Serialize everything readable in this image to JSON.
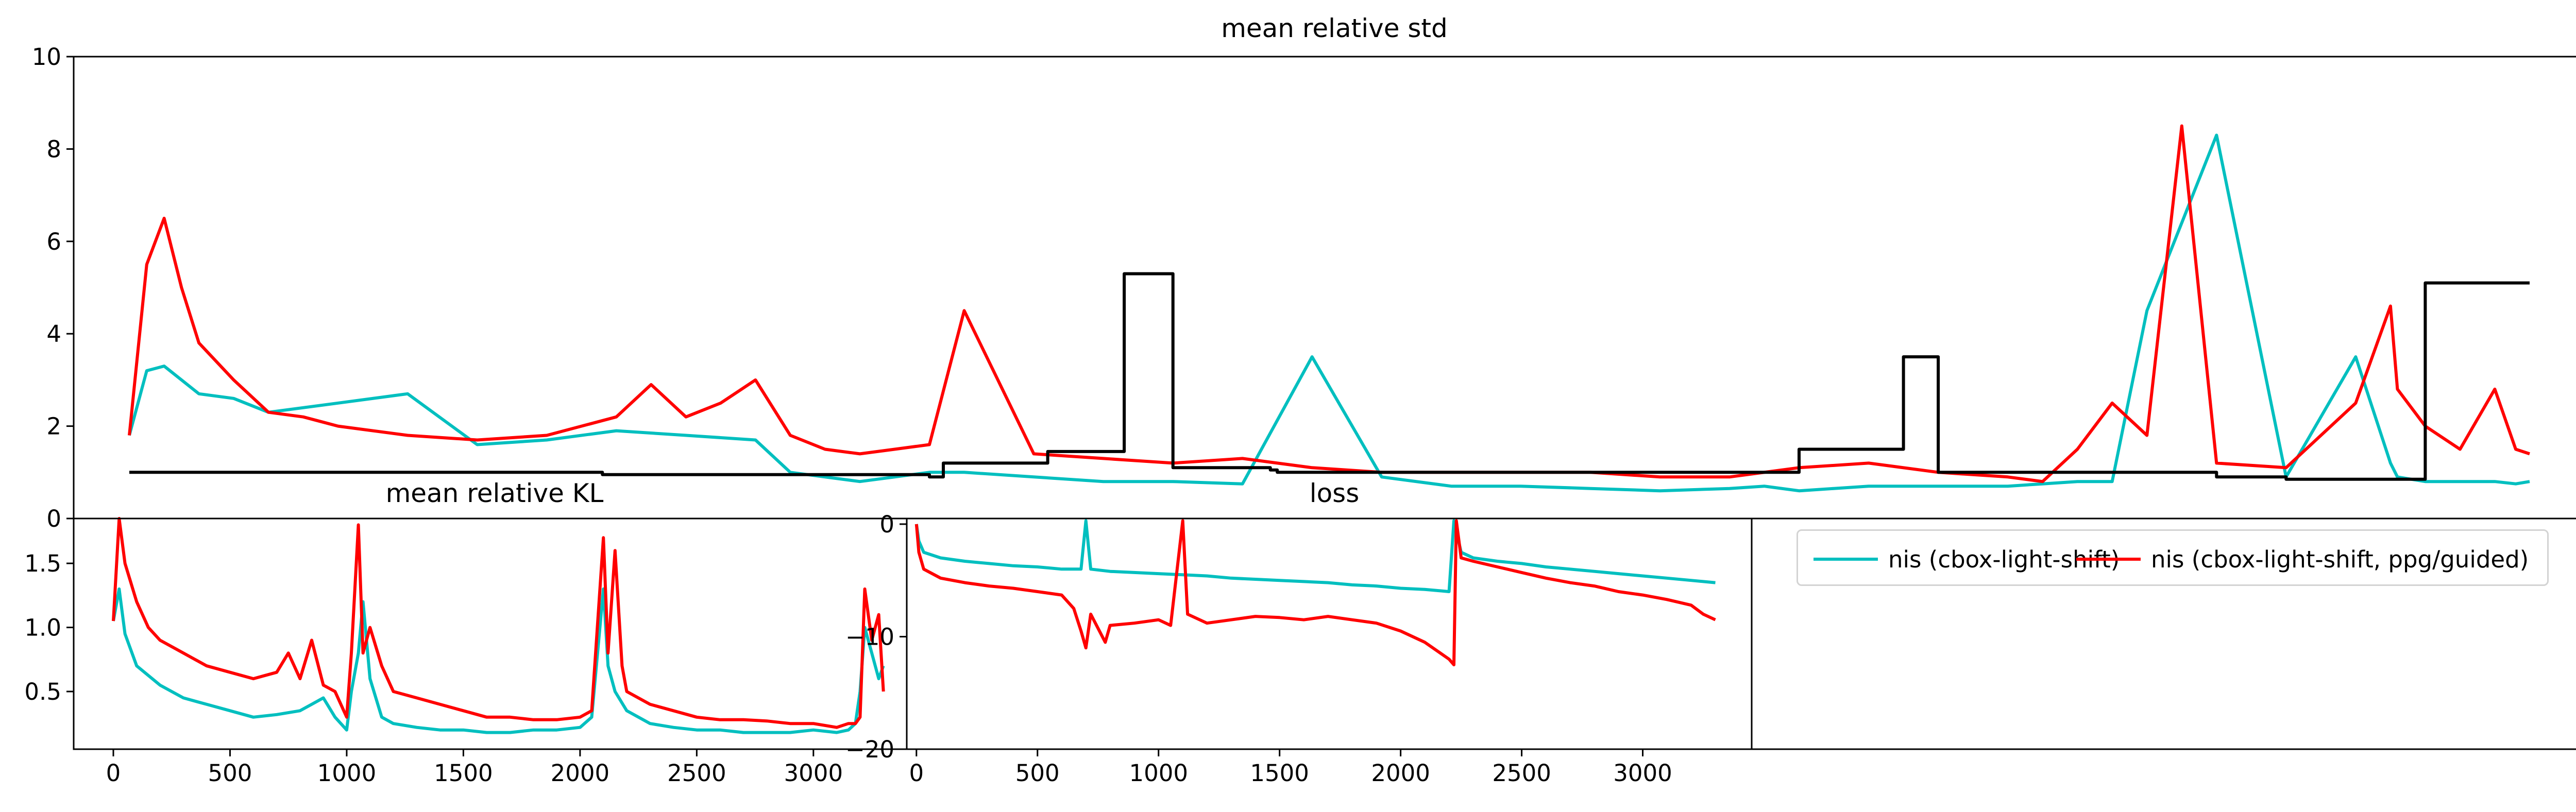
{
  "chart_data": [
    {
      "id": "std",
      "type": "line",
      "title": "mean relative std",
      "xlim": [
        -80,
        3550
      ],
      "ylim": [
        0,
        10
      ],
      "yticks": [
        0,
        2,
        4,
        6,
        8,
        10
      ],
      "ytick_labels": [
        "0",
        "2",
        "4",
        "6",
        "8",
        "10"
      ],
      "series": [
        {
          "color": "#00bfbf",
          "x": [
            0,
            25,
            50,
            100,
            150,
            200,
            300,
            400,
            500,
            600,
            700,
            800,
            900,
            950,
            1000,
            1050,
            1100,
            1150,
            1200,
            1300,
            1400,
            1500,
            1600,
            1700,
            1800,
            1900,
            2000,
            2100,
            2200,
            2300,
            2350,
            2400,
            2450,
            2500,
            2550,
            2600,
            2650,
            2700,
            2750,
            2800,
            2850,
            2900,
            3000,
            3100,
            3200,
            3250,
            3260,
            3300,
            3350,
            3400,
            3430,
            3450
          ],
          "y": [
            1.8,
            3.2,
            3.3,
            2.7,
            2.6,
            2.3,
            2.5,
            2.7,
            1.6,
            1.7,
            1.9,
            1.8,
            1.7,
            1.0,
            0.9,
            0.8,
            0.9,
            1.0,
            1.0,
            0.9,
            0.8,
            0.8,
            0.75,
            3.5,
            0.9,
            0.7,
            0.7,
            0.65,
            0.6,
            0.65,
            0.7,
            0.6,
            0.65,
            0.7,
            0.7,
            0.7,
            0.7,
            0.7,
            0.75,
            0.8,
            0.8,
            4.5,
            8.3,
            0.9,
            3.5,
            1.2,
            0.9,
            0.8,
            0.8,
            0.8,
            0.75,
            0.8
          ]
        },
        {
          "color": "#ff0000",
          "x": [
            0,
            25,
            50,
            75,
            100,
            150,
            200,
            250,
            300,
            400,
            500,
            600,
            700,
            750,
            800,
            850,
            900,
            950,
            1000,
            1050,
            1100,
            1150,
            1200,
            1300,
            1400,
            1500,
            1600,
            1700,
            1800,
            1900,
            2000,
            2100,
            2200,
            2300,
            2400,
            2500,
            2600,
            2700,
            2750,
            2800,
            2850,
            2900,
            2950,
            3000,
            3100,
            3200,
            3250,
            3260,
            3300,
            3350,
            3400,
            3430,
            3450
          ],
          "y": [
            1.8,
            5.5,
            6.5,
            5.0,
            3.8,
            3.0,
            2.3,
            2.2,
            2.0,
            1.8,
            1.7,
            1.8,
            2.2,
            2.9,
            2.2,
            2.5,
            3.0,
            1.8,
            1.5,
            1.4,
            1.5,
            1.6,
            4.5,
            1.4,
            1.3,
            1.2,
            1.3,
            1.1,
            1.0,
            1.0,
            1.0,
            1.0,
            0.9,
            0.9,
            1.1,
            1.2,
            1.0,
            0.9,
            0.8,
            1.5,
            2.5,
            1.8,
            8.5,
            1.2,
            1.1,
            2.5,
            4.6,
            2.8,
            2.0,
            1.5,
            2.8,
            1.5,
            1.4
          ]
        },
        {
          "color": "#000000",
          "step": true,
          "x": [
            0,
            680,
            1150,
            1170,
            1320,
            1430,
            1500,
            1640,
            1650,
            1860,
            2250,
            2280,
            2400,
            2550,
            2600,
            2950,
            3000,
            3100,
            3300,
            3450
          ],
          "y": [
            1.0,
            0.95,
            0.9,
            1.2,
            1.45,
            5.3,
            1.1,
            1.05,
            1.0,
            1.0,
            1.0,
            1.0,
            1.5,
            3.5,
            1.0,
            1.0,
            0.9,
            0.85,
            5.1,
            5.1
          ]
        }
      ]
    },
    {
      "id": "kl",
      "type": "line",
      "title": "mean relative KL",
      "xlim": [
        -170,
        3400
      ],
      "ylim": [
        0.05,
        1.85
      ],
      "yticks": [
        0.5,
        1.0,
        1.5
      ],
      "ytick_labels": [
        "0.5",
        "1.0",
        "1.5"
      ],
      "xticks": [
        0,
        500,
        1000,
        1500,
        2000,
        2500,
        3000
      ],
      "xtick_labels": [
        "0",
        "500",
        "1000",
        "1500",
        "2000",
        "2500",
        "3000"
      ],
      "series": [
        {
          "color": "#00bfbf",
          "x": [
            0,
            25,
            50,
            100,
            200,
            300,
            400,
            500,
            600,
            700,
            800,
            850,
            900,
            950,
            1000,
            1020,
            1050,
            1070,
            1100,
            1150,
            1200,
            1300,
            1400,
            1500,
            1600,
            1700,
            1800,
            1900,
            2000,
            2050,
            2100,
            2120,
            2150,
            2200,
            2300,
            2400,
            2500,
            2600,
            2700,
            2800,
            2900,
            3000,
            3100,
            3150,
            3180,
            3200,
            3220,
            3250,
            3280,
            3300
          ],
          "y": [
            1.05,
            1.3,
            0.95,
            0.7,
            0.55,
            0.45,
            0.4,
            0.35,
            0.3,
            0.32,
            0.35,
            0.4,
            0.45,
            0.3,
            0.2,
            0.5,
            0.8,
            1.2,
            0.6,
            0.3,
            0.25,
            0.22,
            0.2,
            0.2,
            0.18,
            0.18,
            0.2,
            0.2,
            0.22,
            0.3,
            1.3,
            0.7,
            0.5,
            0.35,
            0.25,
            0.22,
            0.2,
            0.2,
            0.18,
            0.18,
            0.18,
            0.2,
            0.18,
            0.2,
            0.25,
            0.5,
            1.0,
            0.8,
            0.6,
            0.7
          ]
        },
        {
          "color": "#ff0000",
          "x": [
            0,
            25,
            50,
            100,
            150,
            200,
            300,
            400,
            500,
            600,
            700,
            750,
            800,
            850,
            900,
            950,
            1000,
            1020,
            1050,
            1070,
            1100,
            1150,
            1200,
            1300,
            1400,
            1500,
            1600,
            1700,
            1800,
            1900,
            2000,
            2050,
            2100,
            2120,
            2150,
            2180,
            2200,
            2300,
            2400,
            2500,
            2600,
            2700,
            2800,
            2900,
            3000,
            3100,
            3150,
            3180,
            3200,
            3220,
            3250,
            3280,
            3300
          ],
          "y": [
            1.05,
            1.85,
            1.5,
            1.2,
            1.0,
            0.9,
            0.8,
            0.7,
            0.65,
            0.6,
            0.65,
            0.8,
            0.6,
            0.9,
            0.55,
            0.5,
            0.3,
            0.8,
            1.8,
            0.8,
            1.0,
            0.7,
            0.5,
            0.45,
            0.4,
            0.35,
            0.3,
            0.3,
            0.28,
            0.28,
            0.3,
            0.35,
            1.7,
            0.8,
            1.6,
            0.7,
            0.5,
            0.4,
            0.35,
            0.3,
            0.28,
            0.28,
            0.27,
            0.25,
            0.25,
            0.22,
            0.25,
            0.25,
            0.3,
            1.3,
            0.9,
            1.1,
            0.5
          ]
        }
      ]
    },
    {
      "id": "loss",
      "type": "line",
      "title": "loss",
      "xlim": [
        -40,
        3450
      ],
      "ylim": [
        -20,
        0.5
      ],
      "yticks": [
        0,
        -10,
        -20
      ],
      "ytick_labels": [
        "0",
        "−10",
        "−20"
      ],
      "xticks": [
        0,
        500,
        1000,
        1500,
        2000,
        2500,
        3000
      ],
      "xtick_labels": [
        "0",
        "500",
        "1000",
        "1500",
        "2000",
        "2500",
        "3000"
      ],
      "series": [
        {
          "color": "#00bfbf",
          "x": [
            0,
            10,
            30,
            100,
            200,
            300,
            400,
            500,
            600,
            680,
            700,
            720,
            800,
            900,
            1000,
            1100,
            1200,
            1300,
            1400,
            1500,
            1600,
            1700,
            1800,
            1900,
            2000,
            2100,
            2200,
            2220,
            2250,
            2300,
            2400,
            2500,
            2600,
            2700,
            2800,
            2900,
            3000,
            3100,
            3200,
            3300
          ],
          "y": [
            0.0,
            -1.5,
            -2.5,
            -3.0,
            -3.3,
            -3.5,
            -3.7,
            -3.8,
            -4.0,
            -4.0,
            0.3,
            -4.0,
            -4.2,
            -4.3,
            -4.4,
            -4.5,
            -4.6,
            -4.8,
            -4.9,
            -5.0,
            -5.1,
            -5.2,
            -5.4,
            -5.5,
            -5.7,
            -5.8,
            -6.0,
            0.3,
            -2.5,
            -3.0,
            -3.3,
            -3.5,
            -3.8,
            -4.0,
            -4.2,
            -4.4,
            -4.6,
            -4.8,
            -5.0,
            -5.2
          ]
        },
        {
          "color": "#ff0000",
          "x": [
            0,
            10,
            30,
            100,
            200,
            300,
            400,
            500,
            600,
            650,
            680,
            700,
            720,
            780,
            800,
            900,
            1000,
            1050,
            1100,
            1120,
            1200,
            1300,
            1400,
            1500,
            1600,
            1700,
            1800,
            1900,
            2000,
            2100,
            2200,
            2220,
            2230,
            2250,
            2300,
            2400,
            2500,
            2600,
            2700,
            2800,
            2900,
            3000,
            3100,
            3200,
            3250,
            3300
          ],
          "y": [
            0.0,
            -2.5,
            -4.0,
            -4.8,
            -5.2,
            -5.5,
            -5.7,
            -6.0,
            -6.3,
            -7.5,
            -9.5,
            -11.0,
            -8.0,
            -10.5,
            -9.0,
            -8.8,
            -8.5,
            -9.0,
            0.3,
            -8.0,
            -8.8,
            -8.5,
            -8.2,
            -8.3,
            -8.5,
            -8.2,
            -8.5,
            -8.8,
            -9.5,
            -10.5,
            -12.0,
            -12.5,
            0.3,
            -3.0,
            -3.3,
            -3.8,
            -4.3,
            -4.8,
            -5.2,
            -5.5,
            -6.0,
            -6.3,
            -6.7,
            -7.2,
            -8.0,
            -8.5
          ]
        }
      ]
    }
  ],
  "legend": {
    "entries": [
      {
        "label": "nis (cbox-light-shift)",
        "color": "#00bfbf"
      },
      {
        "label": "nis (cbox-light-shift, ppg/guided)",
        "color": "#ff0000"
      }
    ]
  }
}
